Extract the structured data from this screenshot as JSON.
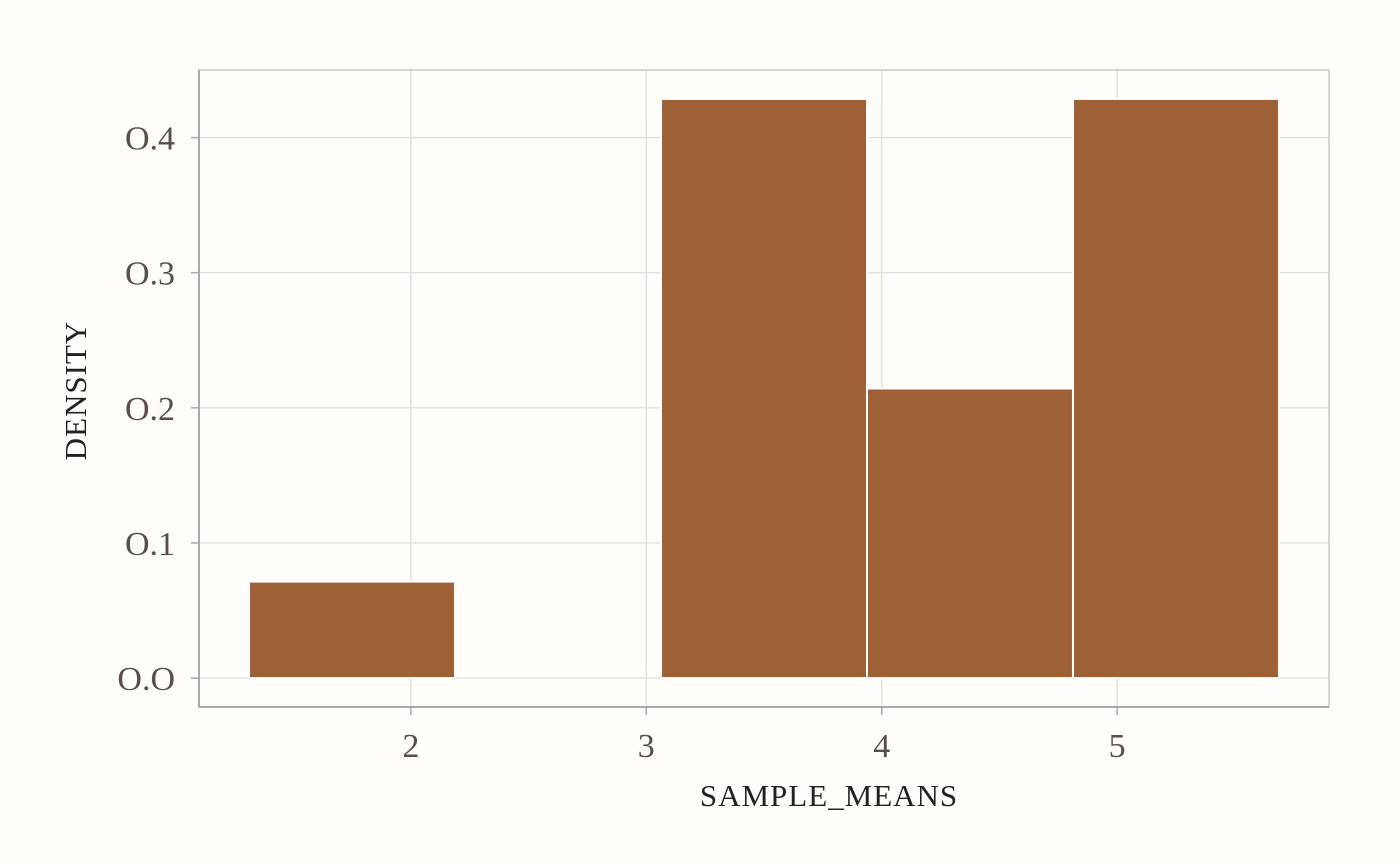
{
  "chart_data": {
    "type": "bar",
    "subtype": "histogram",
    "title": "",
    "xlabel": "SAMPLE_MEANS",
    "ylabel": "DENSITY",
    "bins": [
      {
        "x0": 1.3125,
        "x1": 2.1875,
        "density": 0.0714
      },
      {
        "x0": 2.1875,
        "x1": 3.0625,
        "density": 0.0
      },
      {
        "x0": 3.0625,
        "x1": 3.9375,
        "density": 0.4286
      },
      {
        "x0": 3.9375,
        "x1": 4.8125,
        "density": 0.2143
      },
      {
        "x0": 4.8125,
        "x1": 5.6875,
        "density": 0.4286
      }
    ],
    "xlim": [
      1.1,
      5.9
    ],
    "ylim": [
      -0.0214,
      0.45
    ],
    "x_ticks": [
      2,
      3,
      4,
      5
    ],
    "x_tick_labels": [
      "2",
      "3",
      "4",
      "5"
    ],
    "y_ticks": [
      0.0,
      0.1,
      0.2,
      0.3,
      0.4
    ],
    "y_tick_labels": [
      "O.O",
      "O.1",
      "O.2",
      "O.3",
      "O.4"
    ],
    "grid": true,
    "bar_color": "#98582a",
    "bar_edge_color": "#ffffff"
  }
}
